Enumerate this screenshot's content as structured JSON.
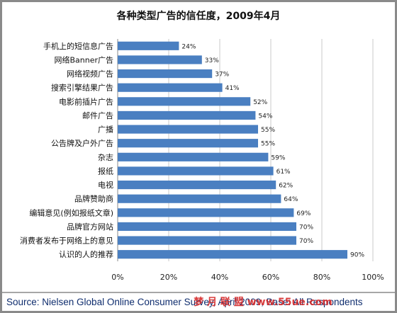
{
  "chart_data": {
    "type": "bar",
    "orientation": "horizontal",
    "title": "各种类型广告的信任度，2009年4月",
    "categories": [
      "手机上的短信息广告",
      "网络Banner广告",
      "网络视频广告",
      "搜索引擎结果广告",
      "电影前插片广告",
      "邮件广告",
      "广播",
      "公告牌及户外广告",
      "杂志",
      "报纸",
      "电视",
      "品牌赞助商",
      "编辑意见(例如报纸文章)",
      "品牌官方网站",
      "消费者发布于网络上的意见",
      "认识的人的推荐"
    ],
    "values": [
      24,
      33,
      37,
      41,
      52,
      54,
      55,
      55,
      59,
      61,
      62,
      64,
      69,
      70,
      70,
      90
    ],
    "value_labels": [
      "24%",
      "33%",
      "37%",
      "41%",
      "52%",
      "54%",
      "55%",
      "55%",
      "59%",
      "61%",
      "62%",
      "64%",
      "69%",
      "70%",
      "70%",
      "90%"
    ],
    "xlim": [
      0,
      100
    ],
    "xticks": [
      "0%",
      "20%",
      "40%",
      "60%",
      "80%",
      "100%"
    ],
    "grid": "vertical",
    "bar_color": "#4a7fc1"
  },
  "footer": {
    "source": "Source: Nielsen Global Online Consumer Survey, April 2009, Base: All Respondents",
    "watermark": "梦 月 联 盟  www.55ue.com"
  }
}
